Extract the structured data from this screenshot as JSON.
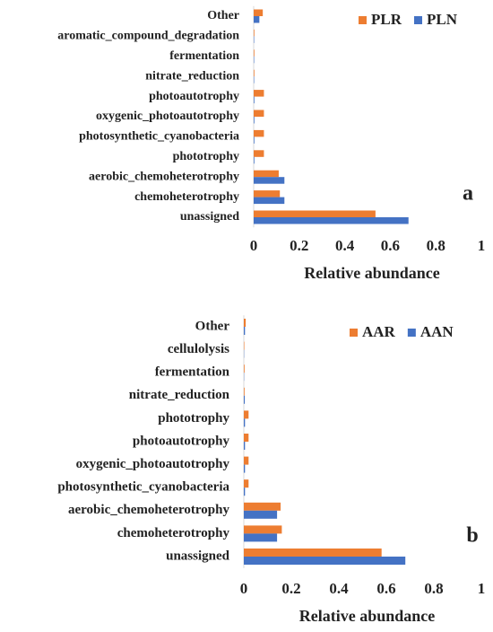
{
  "chart_data": [
    {
      "type": "bar",
      "orientation": "horizontal",
      "annotation": "a",
      "x_label": "Relative abundance",
      "categories": [
        "Other",
        "aromatic_compound_degradation",
        "fermentation",
        "nitrate_reduction",
        "photoautotrophy",
        "oxygenic_photoautotrophy",
        "photosynthetic_cyanobacteria",
        "phototrophy",
        "aerobic_chemoheterotrophy",
        "chemoheterotrophy",
        "unassigned"
      ],
      "series": [
        {
          "name": "PLR",
          "color": "#ed7d31",
          "values": [
            0.04,
            0.003,
            0.003,
            0.003,
            0.045,
            0.045,
            0.045,
            0.045,
            0.11,
            0.115,
            0.535
          ]
        },
        {
          "name": "PLN",
          "color": "#4472c4",
          "values": [
            0.025,
            0.002,
            0.002,
            0.002,
            0.003,
            0.003,
            0.003,
            0.003,
            0.135,
            0.135,
            0.68
          ]
        }
      ],
      "xlim": [
        0,
        1
      ],
      "xticks": [
        0,
        0.2,
        0.4,
        0.6,
        0.8,
        1
      ],
      "grid": false,
      "legend": "top-right"
    },
    {
      "type": "bar",
      "orientation": "horizontal",
      "annotation": "b",
      "x_label": "Relative abundance",
      "categories": [
        "Other",
        "cellulolysis",
        "fermentation",
        "nitrate_reduction",
        "phototrophy",
        "photoautotrophy",
        "oxygenic_photoautotrophy",
        "photosynthetic_cyanobacteria",
        "aerobic_chemoheterotrophy",
        "chemoheterotrophy",
        "unassigned"
      ],
      "series": [
        {
          "name": "AAR",
          "color": "#ed7d31",
          "values": [
            0.008,
            0.002,
            0.003,
            0.003,
            0.02,
            0.02,
            0.02,
            0.02,
            0.155,
            0.16,
            0.58
          ]
        },
        {
          "name": "AAN",
          "color": "#4472c4",
          "values": [
            0.005,
            0.001,
            0.001,
            0.004,
            0.005,
            0.005,
            0.005,
            0.005,
            0.14,
            0.14,
            0.68
          ]
        }
      ],
      "xlim": [
        0,
        1
      ],
      "xticks": [
        0,
        0.2,
        0.4,
        0.6,
        0.8,
        1
      ],
      "grid": false,
      "legend": "top-right"
    }
  ]
}
